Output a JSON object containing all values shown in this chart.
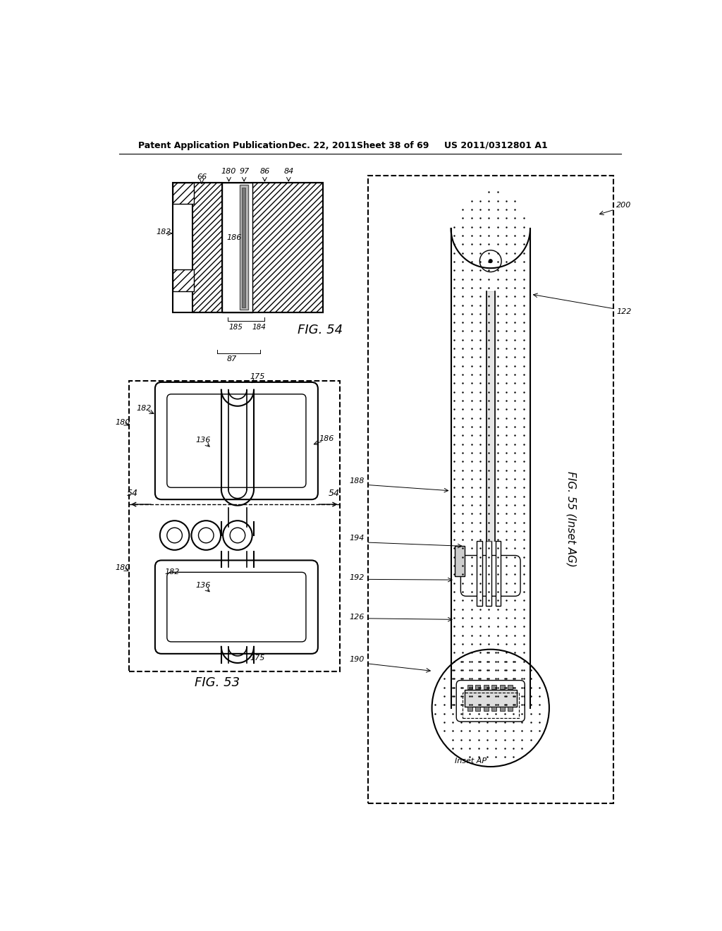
{
  "bg_color": "#ffffff",
  "header_text": "Patent Application Publication",
  "header_date": "Dec. 22, 2011",
  "header_sheet": "Sheet 38 of 69",
  "header_patent": "US 2011/0312801 A1",
  "fig54_label": "FIG. 54",
  "fig53_label": "FIG. 53",
  "fig55_label": "FIG. 55 (Inset AG)",
  "inset_ap_label": "Inset AP"
}
